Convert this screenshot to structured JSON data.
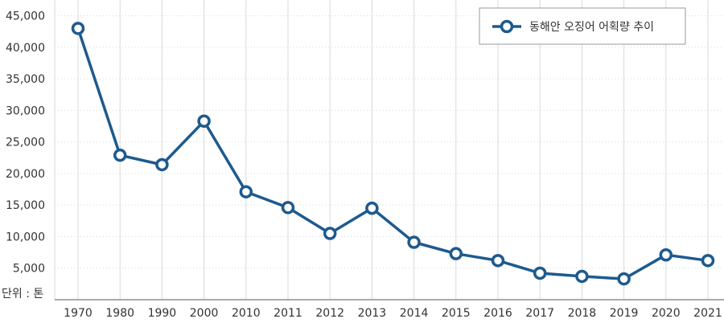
{
  "chart_data": {
    "type": "line",
    "title": "",
    "xlabel": "",
    "ylabel": "",
    "unit_label": "단위 : 톤",
    "categories": [
      "1970",
      "1980",
      "1990",
      "2000",
      "2010",
      "2011",
      "2012",
      "2013",
      "2014",
      "2015",
      "2016",
      "2017",
      "2018",
      "2019",
      "2020",
      "2021"
    ],
    "series": [
      {
        "name": "동해안 오징어 어획량 추이",
        "values": [
          43000,
          22900,
          21400,
          28300,
          17100,
          14600,
          10500,
          14500,
          9100,
          7300,
          6200,
          4200,
          3700,
          3300,
          7100,
          6200
        ]
      }
    ],
    "ylim": [
      0,
      47500
    ],
    "yticks": [
      5000,
      10000,
      15000,
      20000,
      25000,
      30000,
      35000,
      40000,
      45000
    ],
    "ytick_labels": [
      "5,000",
      "10,000",
      "15,000",
      "20,000",
      "25,000",
      "30,000",
      "35,000",
      "40,000",
      "45,000"
    ],
    "grid": true,
    "legend_position": "top-right",
    "colors": {
      "line": "#1d5a8e",
      "marker_fill": "#ffffff",
      "grid": "#d9d9d9",
      "axis": "#555555"
    }
  }
}
